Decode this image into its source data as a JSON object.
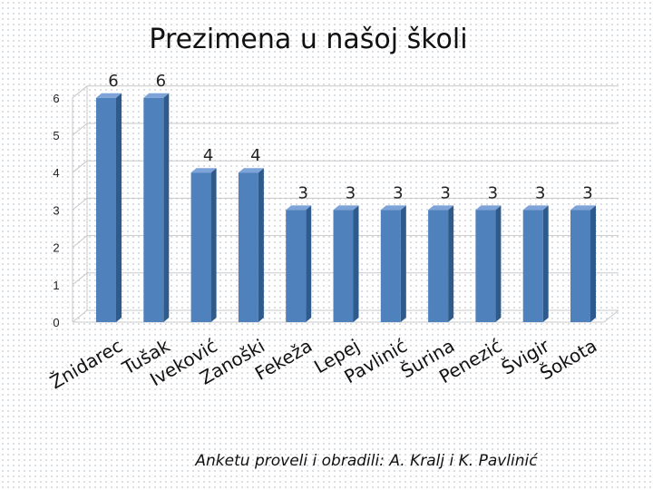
{
  "title": "Prezimena u našoj školi",
  "footer": "Anketu proveli i obradili: A. Kralj i K. Pavlinić",
  "colors": {
    "bar": "#4f81bd",
    "bar_side": "#2f5b8c",
    "bar_top": "#7ea3d8",
    "grid": "#c8c8c8"
  },
  "chart_data": {
    "type": "bar",
    "title": "Prezimena u našoj školi",
    "categories": [
      "Žnidarec",
      "Tušak",
      "Iveković",
      "Zanoški",
      "Fekeža",
      "Lepej",
      "Pavlinić",
      "Šurina",
      "Penezić",
      "Švigir",
      "Šokota"
    ],
    "values": [
      6,
      6,
      4,
      4,
      3,
      3,
      3,
      3,
      3,
      3,
      3
    ],
    "ylim": [
      0,
      6
    ],
    "yticks": [
      0,
      1,
      2,
      3,
      4,
      5,
      6
    ],
    "grid": true,
    "data_labels": true,
    "style": "3d-column",
    "legend": "none"
  }
}
